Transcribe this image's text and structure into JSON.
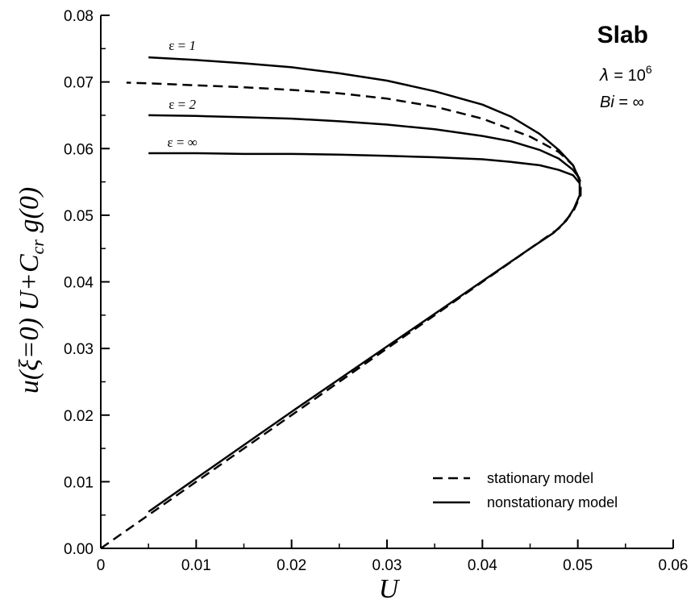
{
  "chart_data": {
    "type": "line",
    "title": "Slab",
    "params": {
      "lambda": {
        "symbol": "λ",
        "text": " = 10",
        "sup": "6"
      },
      "bi": {
        "symbol": "Bi",
        "text": " = ∞"
      }
    },
    "xlabel": "U",
    "ylabel": {
      "p1": "u(ξ=0) U+C",
      "sub": "cr",
      "p2": " g(0)"
    },
    "xlim": [
      0,
      0.06
    ],
    "ylim": [
      0,
      0.08
    ],
    "x_ticks": [
      "0",
      "0.01",
      "0.02",
      "0.03",
      "0.04",
      "0.05",
      "0.06"
    ],
    "y_ticks": [
      "0.00",
      "0.01",
      "0.02",
      "0.03",
      "0.04",
      "0.05",
      "0.06",
      "0.07",
      "0.08"
    ],
    "grid": false,
    "legend_position": "bottom-right",
    "legend": [
      {
        "label": "stationary model",
        "style": "dashed"
      },
      {
        "label": "nonstationary model",
        "style": "solid"
      }
    ],
    "curve_labels": [
      {
        "text": "ε = ",
        "italic": "1",
        "x": 0.005,
        "y": 0.0738
      },
      {
        "text": "ε = ",
        "italic": "2",
        "x": 0.005,
        "y": 0.065
      },
      {
        "text": "ε = ∞",
        "italic": "",
        "x": 0.005,
        "y": 0.0593
      }
    ],
    "series": [
      {
        "name": "stationary model",
        "style": "dashed",
        "points": [
          [
            0.0,
            0.0
          ],
          [
            0.005,
            0.005
          ],
          [
            0.01,
            0.01
          ],
          [
            0.015,
            0.015
          ],
          [
            0.02,
            0.02
          ],
          [
            0.025,
            0.025
          ],
          [
            0.03,
            0.03
          ],
          [
            0.035,
            0.035
          ],
          [
            0.04,
            0.04
          ],
          [
            0.045,
            0.045
          ],
          [
            0.048,
            0.048
          ],
          [
            0.0495,
            0.0505
          ],
          [
            0.0503,
            0.053
          ],
          [
            0.0503,
            0.055
          ],
          [
            0.0495,
            0.0575
          ],
          [
            0.048,
            0.0595
          ],
          [
            0.045,
            0.0618
          ],
          [
            0.04,
            0.0645
          ],
          [
            0.035,
            0.0663
          ],
          [
            0.03,
            0.0675
          ],
          [
            0.025,
            0.0683
          ],
          [
            0.02,
            0.0688
          ],
          [
            0.015,
            0.0692
          ],
          [
            0.01,
            0.0695
          ],
          [
            0.005,
            0.0698
          ],
          [
            0.0027,
            0.0699
          ]
        ]
      },
      {
        "name": "ε = 1",
        "style": "solid",
        "points": [
          [
            0.005,
            0.0055
          ],
          [
            0.01,
            0.0105
          ],
          [
            0.015,
            0.0155
          ],
          [
            0.02,
            0.0205
          ],
          [
            0.025,
            0.0254
          ],
          [
            0.03,
            0.0303
          ],
          [
            0.035,
            0.0352
          ],
          [
            0.04,
            0.0401
          ],
          [
            0.045,
            0.045
          ],
          [
            0.0475,
            0.0474
          ],
          [
            0.0488,
            0.0492
          ],
          [
            0.0496,
            0.051
          ],
          [
            0.0502,
            0.053
          ],
          [
            0.0502,
            0.0552
          ],
          [
            0.0495,
            0.0575
          ],
          [
            0.048,
            0.0598
          ],
          [
            0.046,
            0.0622
          ],
          [
            0.043,
            0.0648
          ],
          [
            0.04,
            0.0666
          ],
          [
            0.035,
            0.0686
          ],
          [
            0.03,
            0.0702
          ],
          [
            0.025,
            0.0713
          ],
          [
            0.02,
            0.0722
          ],
          [
            0.015,
            0.0728
          ],
          [
            0.01,
            0.0733
          ],
          [
            0.005,
            0.0737
          ]
        ]
      },
      {
        "name": "ε = 2",
        "style": "solid",
        "points": [
          [
            0.0502,
            0.0555
          ],
          [
            0.0495,
            0.0568
          ],
          [
            0.048,
            0.0585
          ],
          [
            0.046,
            0.0598
          ],
          [
            0.043,
            0.0611
          ],
          [
            0.04,
            0.0619
          ],
          [
            0.035,
            0.0629
          ],
          [
            0.03,
            0.0636
          ],
          [
            0.025,
            0.0641
          ],
          [
            0.02,
            0.0645
          ],
          [
            0.015,
            0.0647
          ],
          [
            0.01,
            0.0649
          ],
          [
            0.005,
            0.065
          ]
        ]
      },
      {
        "name": "ε = ∞",
        "style": "solid",
        "points": [
          [
            0.0502,
            0.0548
          ],
          [
            0.0495,
            0.056
          ],
          [
            0.048,
            0.0568
          ],
          [
            0.046,
            0.0575
          ],
          [
            0.043,
            0.058
          ],
          [
            0.04,
            0.0584
          ],
          [
            0.035,
            0.0587
          ],
          [
            0.03,
            0.0589
          ],
          [
            0.025,
            0.0591
          ],
          [
            0.02,
            0.0592
          ],
          [
            0.015,
            0.0592
          ],
          [
            0.01,
            0.0593
          ],
          [
            0.005,
            0.0593
          ]
        ]
      }
    ]
  }
}
